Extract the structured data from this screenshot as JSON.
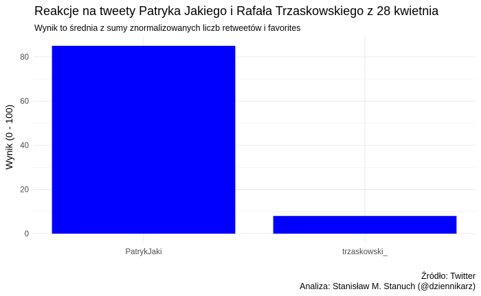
{
  "chart_data": {
    "type": "bar",
    "title": "Reakcje na tweety Patryka Jakiego i Rafała Trzaskowskiego z 28 kwietnia",
    "subtitle": "Wynik to średnia z sumy znormalizowanych liczb retweetów i favorites",
    "xlabel": "",
    "ylabel": "Wynik (0 - 100)",
    "categories": [
      "PatrykJaki",
      "trzaskowski_"
    ],
    "values": [
      85,
      8
    ],
    "ylim": [
      0,
      90
    ],
    "yticks": [
      0,
      20,
      40,
      60,
      80
    ],
    "grid": true,
    "bar_color": "#0000FF",
    "grid_color": "#EBEBEB",
    "caption": [
      "Źródło: Twitter",
      "Analiza: Stanisław M. Stanuch (@dziennikarz)"
    ]
  }
}
